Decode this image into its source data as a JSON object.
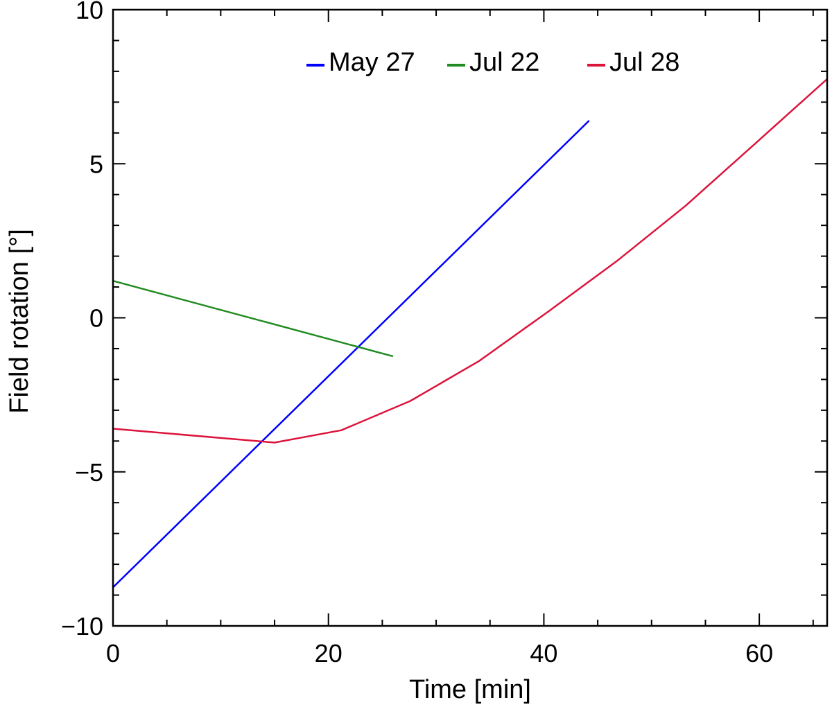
{
  "chart_data": {
    "type": "line",
    "xlabel": "Time [min]",
    "ylabel": "Field rotation [°]",
    "xlim": [
      0,
      66.3
    ],
    "ylim": [
      -10,
      10
    ],
    "x_ticks": [
      0,
      20,
      40,
      60
    ],
    "x_tick_labels": [
      "0",
      "20",
      "40",
      "60"
    ],
    "x_minor_step": 5,
    "y_ticks": [
      -10,
      -5,
      0,
      5,
      10
    ],
    "y_tick_labels": [
      "−10",
      "−5",
      "0",
      "5",
      "10"
    ],
    "y_minor_step": 1,
    "grid": false,
    "legend_position": "top-center",
    "series": [
      {
        "name": "May 27",
        "color": "#0000ff",
        "x": [
          0,
          44.2
        ],
        "y": [
          -8.75,
          6.4
        ]
      },
      {
        "name": "Jul 22",
        "color": "#228b22",
        "x": [
          0,
          26
        ],
        "y": [
          1.2,
          -1.25
        ]
      },
      {
        "name": "Jul 28",
        "color": "#dc143c",
        "x": [
          0,
          15,
          21.2,
          27.6,
          34,
          40.4,
          46.8,
          53.2,
          59.6,
          66.3
        ],
        "y": [
          -3.6,
          -4.05,
          -3.65,
          -2.7,
          -1.4,
          0.2,
          1.85,
          3.65,
          5.65,
          7.75
        ]
      }
    ]
  }
}
